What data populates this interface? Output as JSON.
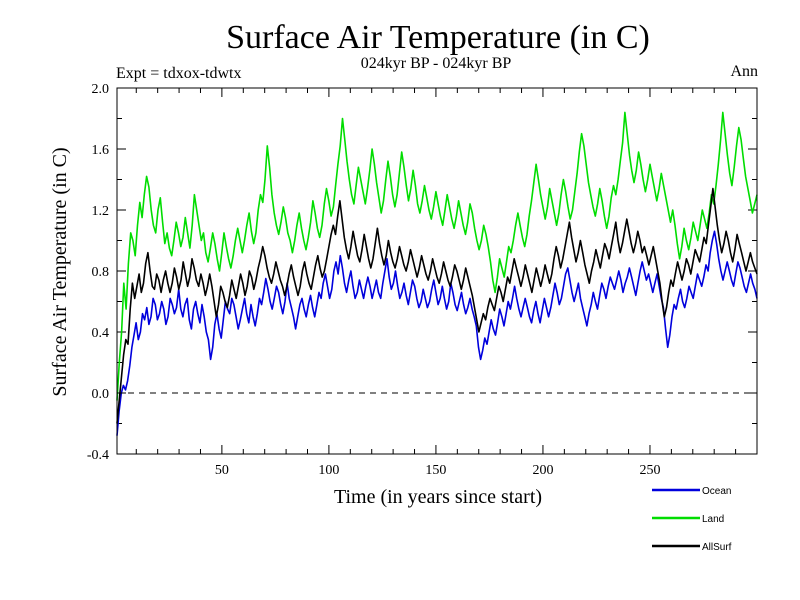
{
  "chart_data": {
    "type": "line",
    "title": "Surface Air Temperature (in C)",
    "subtitle": "024kyr BP - 024kyr BP",
    "experiment_label": "Expt = tdxox-tdwtx",
    "season_label": "Ann",
    "xlabel": "Time (in years since start)",
    "ylabel": "Surface Air Temperature (in C)",
    "xlim": [
      1,
      300
    ],
    "ylim": [
      -0.4,
      2.0
    ],
    "xticks": [
      50,
      100,
      150,
      200,
      250
    ],
    "xtick_labels": [
      "50",
      "100",
      "150",
      "200",
      "250"
    ],
    "yticks": [
      -0.4,
      0.0,
      0.4,
      0.8,
      1.2,
      1.6,
      2.0
    ],
    "ytick_labels": [
      "-0.4",
      "0.0",
      "0.4",
      "0.8",
      "1.2",
      "1.6",
      "2.0"
    ],
    "reference_line": 0.0,
    "series": [
      {
        "name": "Ocean",
        "color": "#0000dd",
        "values": [
          -0.28,
          -0.12,
          0.0,
          0.05,
          0.02,
          0.08,
          0.18,
          0.3,
          0.38,
          0.46,
          0.35,
          0.4,
          0.52,
          0.48,
          0.56,
          0.45,
          0.5,
          0.62,
          0.58,
          0.48,
          0.52,
          0.6,
          0.55,
          0.45,
          0.5,
          0.62,
          0.58,
          0.52,
          0.56,
          0.68,
          0.55,
          0.5,
          0.58,
          0.62,
          0.48,
          0.42,
          0.55,
          0.6,
          0.52,
          0.46,
          0.58,
          0.5,
          0.4,
          0.35,
          0.22,
          0.3,
          0.45,
          0.52,
          0.42,
          0.36,
          0.48,
          0.6,
          0.55,
          0.52,
          0.62,
          0.58,
          0.5,
          0.42,
          0.48,
          0.55,
          0.62,
          0.52,
          0.46,
          0.58,
          0.5,
          0.44,
          0.52,
          0.62,
          0.58,
          0.66,
          0.75,
          0.68,
          0.6,
          0.55,
          0.62,
          0.7,
          0.66,
          0.58,
          0.52,
          0.6,
          0.72,
          0.62,
          0.56,
          0.5,
          0.42,
          0.5,
          0.58,
          0.62,
          0.55,
          0.5,
          0.58,
          0.64,
          0.56,
          0.5,
          0.58,
          0.66,
          0.62,
          0.72,
          0.78,
          0.7,
          0.62,
          0.68,
          0.8,
          0.86,
          0.78,
          0.9,
          0.82,
          0.72,
          0.66,
          0.74,
          0.8,
          0.7,
          0.62,
          0.66,
          0.74,
          0.68,
          0.62,
          0.7,
          0.76,
          0.7,
          0.62,
          0.68,
          0.74,
          0.66,
          0.62,
          0.72,
          0.8,
          0.88,
          0.76,
          0.68,
          0.72,
          0.8,
          0.7,
          0.62,
          0.66,
          0.72,
          0.64,
          0.58,
          0.66,
          0.74,
          0.7,
          0.62,
          0.56,
          0.6,
          0.68,
          0.62,
          0.56,
          0.6,
          0.68,
          0.74,
          0.66,
          0.58,
          0.62,
          0.7,
          0.62,
          0.55,
          0.6,
          0.72,
          0.66,
          0.58,
          0.54,
          0.6,
          0.66,
          0.58,
          0.52,
          0.56,
          0.62,
          0.55,
          0.5,
          0.44,
          0.3,
          0.22,
          0.28,
          0.36,
          0.32,
          0.4,
          0.48,
          0.42,
          0.38,
          0.46,
          0.55,
          0.5,
          0.44,
          0.52,
          0.6,
          0.55,
          0.62,
          0.7,
          0.62,
          0.55,
          0.5,
          0.56,
          0.62,
          0.56,
          0.5,
          0.46,
          0.54,
          0.6,
          0.52,
          0.46,
          0.54,
          0.62,
          0.56,
          0.5,
          0.56,
          0.64,
          0.72,
          0.66,
          0.58,
          0.62,
          0.7,
          0.78,
          0.82,
          0.74,
          0.66,
          0.6,
          0.66,
          0.72,
          0.62,
          0.56,
          0.5,
          0.44,
          0.52,
          0.58,
          0.66,
          0.6,
          0.55,
          0.64,
          0.72,
          0.68,
          0.62,
          0.7,
          0.76,
          0.72,
          0.68,
          0.74,
          0.8,
          0.74,
          0.66,
          0.72,
          0.76,
          0.82,
          0.76,
          0.7,
          0.64,
          0.72,
          0.8,
          0.86,
          0.8,
          0.74,
          0.78,
          0.72,
          0.66,
          0.72,
          0.78,
          0.7,
          0.62,
          0.56,
          0.42,
          0.3,
          0.38,
          0.5,
          0.58,
          0.55,
          0.62,
          0.68,
          0.6,
          0.56,
          0.62,
          0.7,
          0.66,
          0.62,
          0.7,
          0.78,
          0.74,
          0.7,
          0.76,
          0.84,
          0.8,
          0.92,
          1.0,
          1.06,
          0.98,
          0.88,
          0.8,
          0.74,
          0.8,
          0.86,
          0.8,
          0.74,
          0.7,
          0.78,
          0.86,
          0.82,
          0.76,
          0.7,
          0.66,
          0.72,
          0.78,
          0.72,
          0.68,
          0.62
        ]
      },
      {
        "name": "Land",
        "color": "#00dd00",
        "values": [
          -0.05,
          0.2,
          0.4,
          0.72,
          0.55,
          0.85,
          1.05,
          1.0,
          0.9,
          1.1,
          1.25,
          1.15,
          1.3,
          1.42,
          1.35,
          1.2,
          1.1,
          1.05,
          1.2,
          1.28,
          1.12,
          0.98,
          1.05,
          0.95,
          0.9,
          1.0,
          1.12,
          1.05,
          0.96,
          1.02,
          1.15,
          1.05,
          0.95,
          1.1,
          1.3,
          1.2,
          1.1,
          1.0,
          1.05,
          0.92,
          0.86,
          0.95,
          1.05,
          0.98,
          0.88,
          0.8,
          0.92,
          1.05,
          0.96,
          0.88,
          0.82,
          0.9,
          1.0,
          1.08,
          1.0,
          0.92,
          1.0,
          1.1,
          1.18,
          1.06,
          0.98,
          1.05,
          1.2,
          1.3,
          1.25,
          1.4,
          1.62,
          1.48,
          1.3,
          1.18,
          1.1,
          1.04,
          1.12,
          1.22,
          1.15,
          1.05,
          1.0,
          0.92,
          1.0,
          1.1,
          1.18,
          1.08,
          1.0,
          0.94,
          1.02,
          1.12,
          1.26,
          1.18,
          1.08,
          1.02,
          1.1,
          1.24,
          1.34,
          1.26,
          1.16,
          1.22,
          1.36,
          1.5,
          1.62,
          1.8,
          1.66,
          1.52,
          1.4,
          1.3,
          1.24,
          1.36,
          1.48,
          1.4,
          1.32,
          1.24,
          1.34,
          1.46,
          1.6,
          1.5,
          1.38,
          1.28,
          1.18,
          1.26,
          1.4,
          1.52,
          1.42,
          1.3,
          1.22,
          1.3,
          1.44,
          1.58,
          1.48,
          1.36,
          1.26,
          1.34,
          1.46,
          1.36,
          1.24,
          1.18,
          1.26,
          1.36,
          1.28,
          1.2,
          1.14,
          1.22,
          1.32,
          1.24,
          1.16,
          1.1,
          1.2,
          1.3,
          1.22,
          1.14,
          1.08,
          1.16,
          1.26,
          1.18,
          1.1,
          1.04,
          1.12,
          1.24,
          1.18,
          1.08,
          1.0,
          0.94,
          1.0,
          1.1,
          1.04,
          0.96,
          0.86,
          0.74,
          0.66,
          0.76,
          0.88,
          0.82,
          0.76,
          0.86,
          0.96,
          0.92,
          1.0,
          1.1,
          1.18,
          1.1,
          1.02,
          0.96,
          1.04,
          1.16,
          1.26,
          1.38,
          1.5,
          1.4,
          1.3,
          1.22,
          1.14,
          1.22,
          1.34,
          1.26,
          1.18,
          1.1,
          1.18,
          1.3,
          1.4,
          1.32,
          1.22,
          1.14,
          1.2,
          1.32,
          1.44,
          1.58,
          1.7,
          1.62,
          1.5,
          1.38,
          1.3,
          1.22,
          1.16,
          1.24,
          1.34,
          1.26,
          1.16,
          1.08,
          1.16,
          1.28,
          1.36,
          1.3,
          1.4,
          1.52,
          1.64,
          1.84,
          1.7,
          1.56,
          1.46,
          1.38,
          1.46,
          1.58,
          1.5,
          1.4,
          1.32,
          1.4,
          1.5,
          1.42,
          1.34,
          1.26,
          1.34,
          1.44,
          1.36,
          1.28,
          1.2,
          1.12,
          1.2,
          1.1,
          0.98,
          0.88,
          0.96,
          1.08,
          1.0,
          0.94,
          1.02,
          1.12,
          1.06,
          1.0,
          1.1,
          1.2,
          1.14,
          1.08,
          1.18,
          1.3,
          1.24,
          1.36,
          1.5,
          1.66,
          1.84,
          1.7,
          1.56,
          1.44,
          1.36,
          1.48,
          1.62,
          1.74,
          1.66,
          1.54,
          1.42,
          1.34,
          1.26,
          1.18,
          1.24,
          1.3
        ]
      },
      {
        "name": "AllSurf",
        "color": "#000000",
        "values": [
          -0.2,
          -0.05,
          0.1,
          0.25,
          0.35,
          0.32,
          0.55,
          0.72,
          0.62,
          0.7,
          0.78,
          0.66,
          0.72,
          0.85,
          0.92,
          0.8,
          0.7,
          0.68,
          0.78,
          0.74,
          0.66,
          0.74,
          0.8,
          0.72,
          0.66,
          0.72,
          0.82,
          0.76,
          0.68,
          0.74,
          0.86,
          0.78,
          0.7,
          0.76,
          0.88,
          0.82,
          0.74,
          0.7,
          0.78,
          0.72,
          0.64,
          0.7,
          0.78,
          0.7,
          0.6,
          0.5,
          0.58,
          0.7,
          0.66,
          0.6,
          0.56,
          0.64,
          0.74,
          0.68,
          0.62,
          0.7,
          0.78,
          0.72,
          0.64,
          0.7,
          0.8,
          0.76,
          0.68,
          0.74,
          0.82,
          0.88,
          0.96,
          0.9,
          0.82,
          0.76,
          0.72,
          0.78,
          0.86,
          0.8,
          0.74,
          0.7,
          0.64,
          0.7,
          0.78,
          0.84,
          0.76,
          0.7,
          0.64,
          0.7,
          0.8,
          0.86,
          0.78,
          0.72,
          0.68,
          0.76,
          0.84,
          0.9,
          0.82,
          0.76,
          0.8,
          0.88,
          0.96,
          1.04,
          1.1,
          1.04,
          1.16,
          1.26,
          1.14,
          1.02,
          0.94,
          0.88,
          0.96,
          1.06,
          0.98,
          0.9,
          0.86,
          0.94,
          1.04,
          0.96,
          0.88,
          0.82,
          0.88,
          0.98,
          1.08,
          0.98,
          0.9,
          0.84,
          0.9,
          1.0,
          0.92,
          0.86,
          0.82,
          0.88,
          0.96,
          0.9,
          0.84,
          0.8,
          0.86,
          0.94,
          0.88,
          0.82,
          0.76,
          0.82,
          0.9,
          0.84,
          0.78,
          0.74,
          0.8,
          0.88,
          0.82,
          0.76,
          0.72,
          0.78,
          0.86,
          0.8,
          0.74,
          0.7,
          0.76,
          0.84,
          0.8,
          0.74,
          0.68,
          0.74,
          0.82,
          0.76,
          0.7,
          0.64,
          0.56,
          0.48,
          0.4,
          0.46,
          0.52,
          0.48,
          0.56,
          0.62,
          0.58,
          0.54,
          0.62,
          0.7,
          0.66,
          0.6,
          0.68,
          0.76,
          0.72,
          0.8,
          0.88,
          0.82,
          0.76,
          0.7,
          0.76,
          0.84,
          0.78,
          0.72,
          0.66,
          0.74,
          0.82,
          0.76,
          0.7,
          0.76,
          0.84,
          0.78,
          0.72,
          0.78,
          0.88,
          0.96,
          0.9,
          0.82,
          0.88,
          0.96,
          1.04,
          1.12,
          1.02,
          0.94,
          0.86,
          0.92,
          1.0,
          0.92,
          0.84,
          0.78,
          0.72,
          0.8,
          0.86,
          0.94,
          0.88,
          0.82,
          0.9,
          0.98,
          0.94,
          0.88,
          0.96,
          1.04,
          1.12,
          1.0,
          0.92,
          0.98,
          1.06,
          1.14,
          1.06,
          0.98,
          0.92,
          0.98,
          1.06,
          1.0,
          0.92,
          0.96,
          0.9,
          0.84,
          0.9,
          0.96,
          0.88,
          0.8,
          0.72,
          0.6,
          0.5,
          0.56,
          0.66,
          0.74,
          0.7,
          0.78,
          0.86,
          0.8,
          0.74,
          0.8,
          0.88,
          0.84,
          0.78,
          0.86,
          0.94,
          0.9,
          0.86,
          0.94,
          1.02,
          0.98,
          1.1,
          1.22,
          1.34,
          1.22,
          1.1,
          1.0,
          0.92,
          0.98,
          1.06,
          1.0,
          0.92,
          0.86,
          0.94,
          1.04,
          0.98,
          0.92,
          0.86,
          0.8,
          0.86,
          0.92,
          0.86,
          0.82,
          0.78
        ]
      }
    ]
  }
}
